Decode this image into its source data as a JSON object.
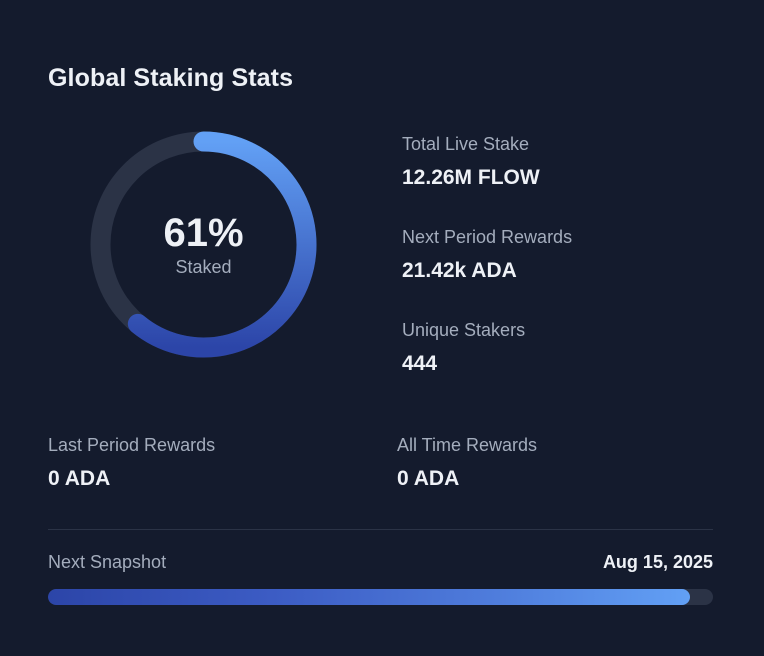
{
  "title": "Global Staking Stats",
  "staked": {
    "percent_text": "61%",
    "label": "Staked",
    "fraction": 0.61
  },
  "stats": {
    "total_live_stake": {
      "label": "Total Live Stake",
      "value": "12.26M FLOW"
    },
    "next_period_rewards": {
      "label": "Next Period Rewards",
      "value": "21.42k ADA"
    },
    "unique_stakers": {
      "label": "Unique Stakers",
      "value": "444"
    },
    "last_period_rewards": {
      "label": "Last Period Rewards",
      "value": "0 ADA"
    },
    "all_time_rewards": {
      "label": "All Time Rewards",
      "value": "0 ADA"
    }
  },
  "snapshot": {
    "label": "Next Snapshot",
    "date": "Aug 15, 2025",
    "progress": 0.965
  },
  "colors": {
    "background": "#141b2d",
    "ring_track": "#2b3346",
    "ring_start": "#62a0f5",
    "ring_end": "#2c45a8",
    "text_primary": "#eef1f6",
    "text_muted": "#a4adbd"
  }
}
